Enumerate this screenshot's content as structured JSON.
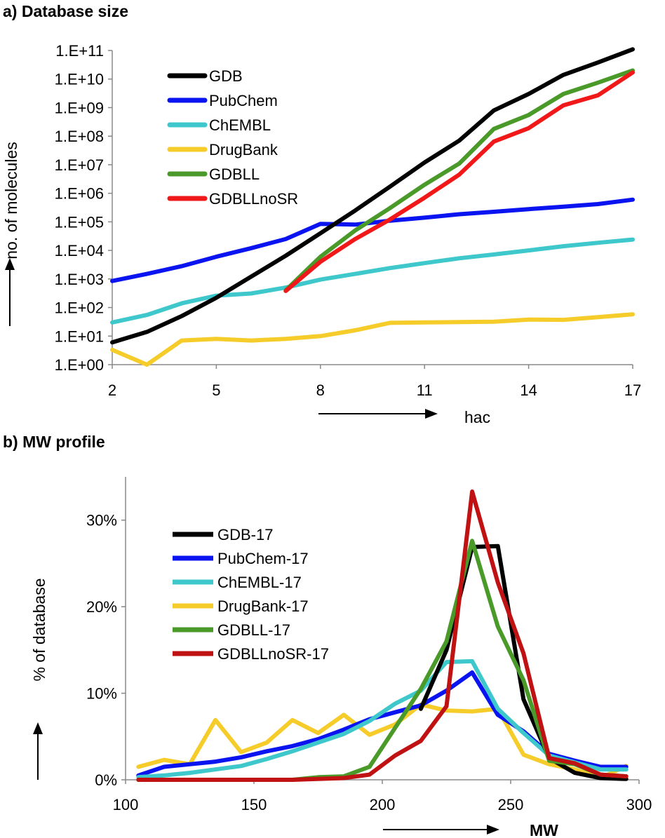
{
  "chart_data": [
    {
      "panel": "a",
      "title": "a) Database size",
      "type": "line",
      "xlabel": "hac",
      "ylabel": "no. of molecules",
      "y_scale": "log",
      "xlim": [
        2,
        17
      ],
      "ylim": [
        1,
        100000000000
      ],
      "x_ticks": [
        "2",
        "5",
        "8",
        "11",
        "14",
        "17"
      ],
      "y_ticks": [
        "1.E+00",
        "1.E+01",
        "1.E+02",
        "1.E+03",
        "1.E+04",
        "1.E+05",
        "1.E+06",
        "1.E+07",
        "1.E+08",
        "1.E+09",
        "1.E+10",
        "1.E+11"
      ],
      "legend_position": "top-left",
      "series": [
        {
          "name": "GDB",
          "color": "#000000",
          "x": [
            2,
            3,
            4,
            5,
            6,
            7,
            8,
            9,
            10,
            11,
            12,
            13,
            14,
            15,
            16,
            17
          ],
          "y": [
            6,
            14,
            50,
            220,
            1200,
            6500,
            40000,
            250000,
            1700000,
            12000000,
            70000000,
            800000000,
            3000000000,
            14000000000,
            38000000000,
            110000000000
          ]
        },
        {
          "name": "PubChem",
          "color": "#0a14f0",
          "x": [
            2,
            3,
            4,
            5,
            6,
            7,
            8,
            9,
            10,
            11,
            12,
            13,
            14,
            15,
            16,
            17
          ],
          "y": [
            850,
            1500,
            2800,
            6000,
            12000,
            25000,
            85000,
            80000,
            110000,
            140000,
            185000,
            225000,
            280000,
            340000,
            420000,
            600000
          ]
        },
        {
          "name": "ChEMBL",
          "color": "#3ec8cc",
          "x": [
            2,
            3,
            4,
            5,
            6,
            7,
            8,
            9,
            10,
            11,
            12,
            13,
            14,
            15,
            16,
            17
          ],
          "y": [
            30,
            55,
            140,
            260,
            310,
            500,
            950,
            1500,
            2400,
            3600,
            5300,
            7200,
            10000,
            14000,
            18500,
            24000
          ]
        },
        {
          "name": "DrugBank",
          "color": "#f5cc2a",
          "x": [
            2,
            3,
            4,
            5,
            6,
            7,
            8,
            9,
            10,
            11,
            12,
            13,
            14,
            15,
            16,
            17
          ],
          "y": [
            3.3,
            1,
            7,
            8,
            7,
            8,
            10,
            16,
            29,
            30,
            31,
            32,
            38,
            37,
            46,
            58
          ]
        },
        {
          "name": "GDBLL",
          "color": "#4a9a2a",
          "x": [
            7,
            8,
            9,
            10,
            11,
            12,
            13,
            14,
            15,
            16,
            17
          ],
          "y": [
            400,
            6000,
            50000,
            300000,
            2000000,
            11000000,
            180000000,
            550000000,
            3000000000,
            7500000000,
            20000000000
          ]
        },
        {
          "name": "GDBLLnoSR",
          "color": "#f01818",
          "x": [
            7,
            8,
            9,
            10,
            11,
            12,
            13,
            14,
            15,
            16,
            17
          ],
          "y": [
            380,
            4000,
            25000,
            120000,
            700000,
            4500000,
            65000000,
            190000000,
            1200000000,
            2700000000,
            17000000000
          ]
        }
      ]
    },
    {
      "panel": "b",
      "title": "b) MW profile",
      "type": "line",
      "xlabel": "MW",
      "ylabel": "% of database",
      "xlim": [
        100,
        300
      ],
      "ylim": [
        0,
        35
      ],
      "x_ticks": [
        "100",
        "150",
        "200",
        "250",
        "300"
      ],
      "y_ticks": [
        "0%",
        "10%",
        "20%",
        "30%"
      ],
      "legend_position": "top-left",
      "series": [
        {
          "name": "GDB-17",
          "color": "#000000",
          "x": [
            215,
            225,
            235,
            245,
            255,
            265,
            275,
            285,
            295
          ],
          "y": [
            8.2,
            15,
            26.9,
            27,
            9.3,
            2.5,
            0.8,
            0.2,
            0.1
          ]
        },
        {
          "name": "PubChem-17",
          "color": "#0a14f0",
          "x": [
            105,
            115,
            125,
            135,
            145,
            155,
            165,
            175,
            185,
            195,
            205,
            215,
            225,
            235,
            245,
            255,
            265,
            275,
            285,
            295
          ],
          "y": [
            0.5,
            1.5,
            1.8,
            2.1,
            2.6,
            3.3,
            3.9,
            4.7,
            5.8,
            7.0,
            7.8,
            8.6,
            10.3,
            12.4,
            7.5,
            5.6,
            3.0,
            2.2,
            1.5,
            1.5
          ]
        },
        {
          "name": "ChEMBL-17",
          "color": "#3ec8cc",
          "x": [
            105,
            115,
            125,
            135,
            145,
            155,
            165,
            175,
            185,
            195,
            205,
            215,
            225,
            235,
            245,
            255,
            265,
            275,
            285,
            295
          ],
          "y": [
            0.3,
            0.5,
            0.8,
            1.2,
            1.6,
            2.4,
            3.3,
            4.3,
            5.3,
            6.8,
            8.8,
            10.3,
            13.6,
            13.7,
            8.2,
            5.4,
            2.8,
            2.0,
            1.2,
            1.2
          ]
        },
        {
          "name": "DrugBank-17",
          "color": "#f5cc2a",
          "x": [
            105,
            115,
            125,
            135,
            145,
            155,
            165,
            175,
            185,
            195,
            205,
            215,
            225,
            235,
            245,
            255,
            265,
            275,
            285,
            295
          ],
          "y": [
            1.5,
            2.3,
            1.8,
            6.9,
            3.2,
            4.3,
            6.9,
            5.4,
            7.5,
            5.2,
            6.4,
            8.7,
            8.0,
            7.9,
            8.2,
            2.9,
            1.8,
            1.2,
            0.2,
            1.6
          ]
        },
        {
          "name": "GDBLL-17",
          "color": "#4a9a2a",
          "x": [
            105,
            115,
            125,
            135,
            145,
            155,
            165,
            175,
            185,
            195,
            205,
            215,
            225,
            235,
            245,
            255,
            265,
            275,
            285,
            295
          ],
          "y": [
            0,
            0,
            0,
            0,
            0,
            0,
            0,
            0.3,
            0.4,
            1.5,
            6,
            10.5,
            16,
            27.6,
            17.7,
            11.5,
            2.2,
            1.8,
            0.6,
            0.4
          ]
        },
        {
          "name": "GDBLLnoSR-17",
          "color": "#c01212",
          "x": [
            105,
            115,
            125,
            135,
            145,
            155,
            165,
            175,
            185,
            195,
            205,
            215,
            225,
            235,
            245,
            255,
            265,
            275,
            285,
            295
          ],
          "y": [
            0,
            0,
            0,
            0,
            0,
            0,
            0,
            0.1,
            0.2,
            0.6,
            2.8,
            4.5,
            8.5,
            33.3,
            22.8,
            14.6,
            2.5,
            1.9,
            0.6,
            0.4
          ]
        }
      ]
    }
  ]
}
